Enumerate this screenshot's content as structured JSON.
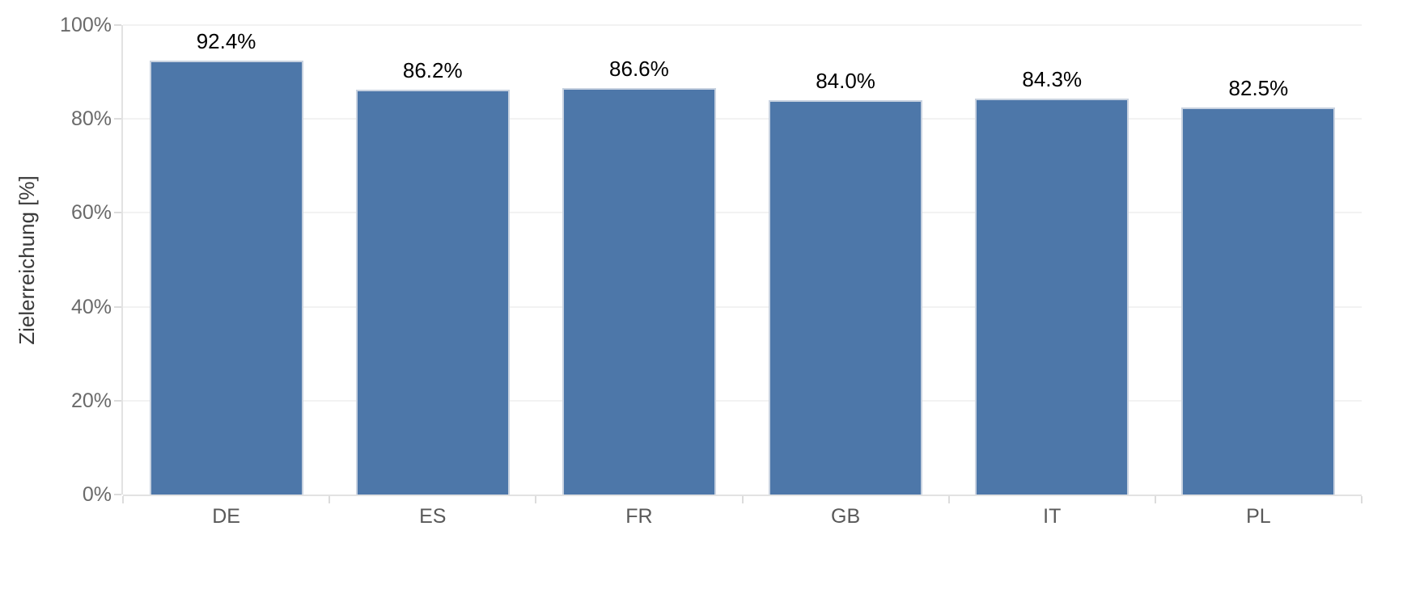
{
  "chart_data": {
    "type": "bar",
    "title": "",
    "categories": [
      "DE",
      "ES",
      "FR",
      "GB",
      "IT",
      "PL"
    ],
    "values": [
      92.4,
      86.2,
      86.6,
      84.0,
      84.3,
      82.5
    ],
    "value_labels": [
      "92.4%",
      "86.2%",
      "86.6%",
      "84.0%",
      "84.3%",
      "82.5%"
    ],
    "xlabel": "",
    "ylabel": "Zielerreichung [%]",
    "ylim": [
      0,
      100
    ],
    "yticks": [
      0,
      20,
      40,
      60,
      80,
      100
    ],
    "ytick_labels": [
      "0%",
      "20%",
      "40%",
      "60%",
      "80%",
      "100%"
    ],
    "grid": true,
    "legend": "none",
    "colors": {
      "bar_fill": "#4d77a9",
      "bar_border": "#c8d2e0",
      "gridline": "#f2f2f2",
      "axis_line": "#e2e2e2",
      "tick": "#dcdcdc",
      "y_tick_label": "#6a6a6a",
      "x_tick_label": "#595959",
      "value_label": "#000000",
      "axis_title": "#3a3a3a",
      "background": "#ffffff"
    }
  }
}
